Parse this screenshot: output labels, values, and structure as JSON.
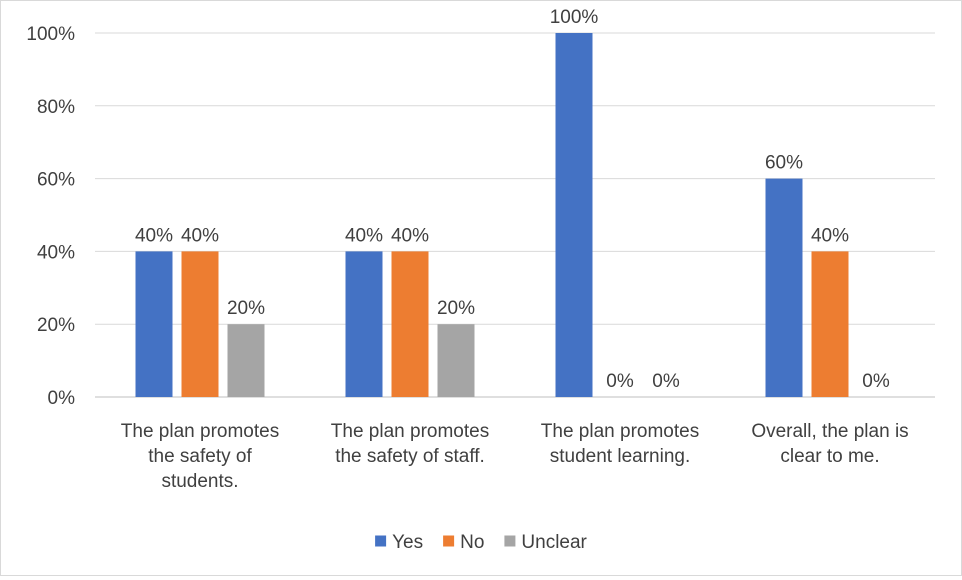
{
  "chart_data": {
    "type": "bar",
    "title": "",
    "xlabel": "",
    "ylabel": "",
    "ylim": [
      0,
      100
    ],
    "yticks": [
      0,
      20,
      40,
      60,
      80,
      100
    ],
    "ytick_labels": [
      "0%",
      "20%",
      "40%",
      "60%",
      "80%",
      "100%"
    ],
    "grid": true,
    "legend_position": "bottom",
    "categories": [
      [
        "The plan promotes",
        "the safety of",
        "students."
      ],
      [
        "The plan promotes",
        "the safety of staff."
      ],
      [
        "The plan promotes",
        "student learning."
      ],
      [
        "Overall, the plan is",
        "clear to me."
      ]
    ],
    "series": [
      {
        "name": "Yes",
        "color": "#4472c4",
        "values": [
          40,
          40,
          100,
          60
        ],
        "labels": [
          "40%",
          "40%",
          "100%",
          "60%"
        ]
      },
      {
        "name": "No",
        "color": "#ed7d31",
        "values": [
          40,
          40,
          0,
          40
        ],
        "labels": [
          "40%",
          "40%",
          "0%",
          "40%"
        ]
      },
      {
        "name": "Unclear",
        "color": "#a5a5a5",
        "values": [
          20,
          20,
          0,
          0
        ],
        "labels": [
          "20%",
          "20%",
          "0%",
          "0%"
        ]
      }
    ]
  }
}
